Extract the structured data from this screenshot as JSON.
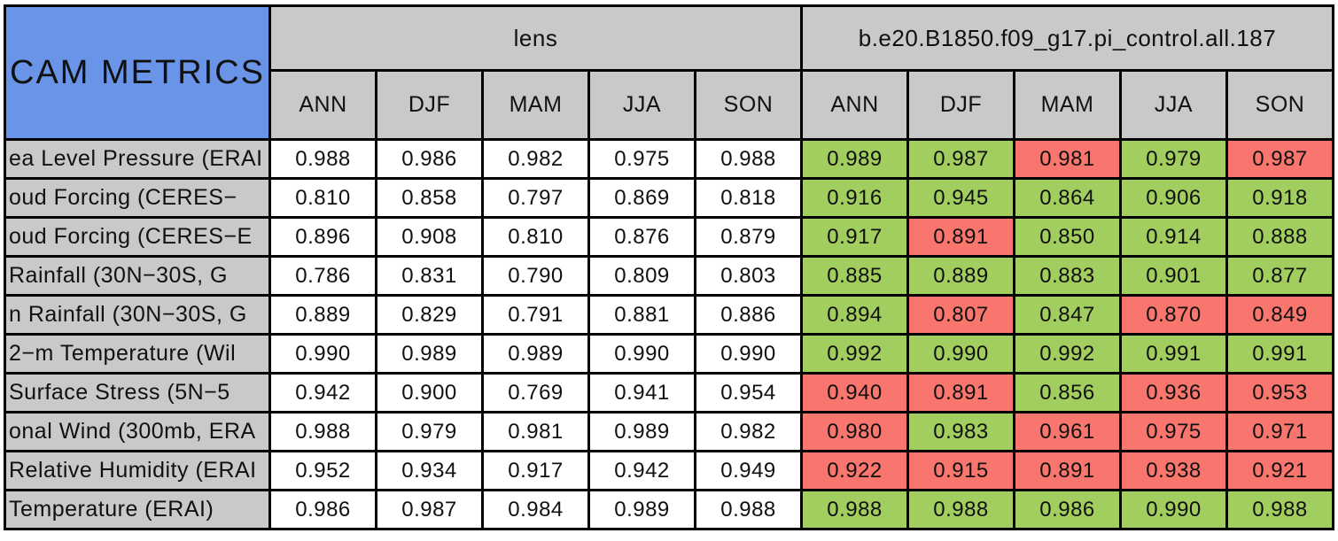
{
  "chart_data": {
    "type": "table",
    "title": "CAM METRICS",
    "column_groups": [
      {
        "label": "lens"
      },
      {
        "label": "b.e20.B1850.f09_g17.pi_control.all.187"
      }
    ],
    "seasons": [
      "ANN",
      "DJF",
      "MAM",
      "JJA",
      "SON"
    ],
    "rows": [
      {
        "label": "ea Level Pressure (ERAI",
        "lens": [
          "0.988",
          "0.986",
          "0.982",
          "0.975",
          "0.988"
        ],
        "control": [
          {
            "v": "0.989",
            "c": "better"
          },
          {
            "v": "0.987",
            "c": "better"
          },
          {
            "v": "0.981",
            "c": "worse"
          },
          {
            "v": "0.979",
            "c": "better"
          },
          {
            "v": "0.987",
            "c": "worse"
          }
        ]
      },
      {
        "label": "oud Forcing (CERES−",
        "lens": [
          "0.810",
          "0.858",
          "0.797",
          "0.869",
          "0.818"
        ],
        "control": [
          {
            "v": "0.916",
            "c": "better"
          },
          {
            "v": "0.945",
            "c": "better"
          },
          {
            "v": "0.864",
            "c": "better"
          },
          {
            "v": "0.906",
            "c": "better"
          },
          {
            "v": "0.918",
            "c": "better"
          }
        ]
      },
      {
        "label": "oud Forcing (CERES−E",
        "lens": [
          "0.896",
          "0.908",
          "0.810",
          "0.876",
          "0.879"
        ],
        "control": [
          {
            "v": "0.917",
            "c": "better"
          },
          {
            "v": "0.891",
            "c": "worse"
          },
          {
            "v": "0.850",
            "c": "better"
          },
          {
            "v": "0.914",
            "c": "better"
          },
          {
            "v": "0.888",
            "c": "better"
          }
        ]
      },
      {
        "label": " Rainfall (30N−30S, G",
        "lens": [
          "0.786",
          "0.831",
          "0.790",
          "0.809",
          "0.803"
        ],
        "control": [
          {
            "v": "0.885",
            "c": "better"
          },
          {
            "v": "0.889",
            "c": "better"
          },
          {
            "v": "0.883",
            "c": "better"
          },
          {
            "v": "0.901",
            "c": "better"
          },
          {
            "v": "0.877",
            "c": "better"
          }
        ]
      },
      {
        "label": "n Rainfall (30N−30S, G",
        "lens": [
          "0.889",
          "0.829",
          "0.791",
          "0.881",
          "0.886"
        ],
        "control": [
          {
            "v": "0.894",
            "c": "better"
          },
          {
            "v": "0.807",
            "c": "worse"
          },
          {
            "v": "0.847",
            "c": "better"
          },
          {
            "v": "0.870",
            "c": "worse"
          },
          {
            "v": "0.849",
            "c": "worse"
          }
        ]
      },
      {
        "label": "2−m Temperature (Wil",
        "lens": [
          "0.990",
          "0.989",
          "0.989",
          "0.990",
          "0.990"
        ],
        "control": [
          {
            "v": "0.992",
            "c": "better"
          },
          {
            "v": "0.990",
            "c": "better"
          },
          {
            "v": "0.992",
            "c": "better"
          },
          {
            "v": "0.991",
            "c": "better"
          },
          {
            "v": "0.991",
            "c": "better"
          }
        ]
      },
      {
        "label": " Surface Stress (5N−5",
        "lens": [
          "0.942",
          "0.900",
          "0.769",
          "0.941",
          "0.954"
        ],
        "control": [
          {
            "v": "0.940",
            "c": "worse"
          },
          {
            "v": "0.891",
            "c": "worse"
          },
          {
            "v": "0.856",
            "c": "better"
          },
          {
            "v": "0.936",
            "c": "worse"
          },
          {
            "v": "0.953",
            "c": "worse"
          }
        ]
      },
      {
        "label": "onal Wind (300mb, ERA",
        "lens": [
          "0.988",
          "0.979",
          "0.981",
          "0.989",
          "0.982"
        ],
        "control": [
          {
            "v": "0.980",
            "c": "worse"
          },
          {
            "v": "0.983",
            "c": "better"
          },
          {
            "v": "0.961",
            "c": "worse"
          },
          {
            "v": "0.975",
            "c": "worse"
          },
          {
            "v": "0.971",
            "c": "worse"
          }
        ]
      },
      {
        "label": "Relative Humidity (ERAI",
        "lens": [
          "0.952",
          "0.934",
          "0.917",
          "0.942",
          "0.949"
        ],
        "control": [
          {
            "v": "0.922",
            "c": "worse"
          },
          {
            "v": "0.915",
            "c": "worse"
          },
          {
            "v": "0.891",
            "c": "worse"
          },
          {
            "v": "0.938",
            "c": "worse"
          },
          {
            "v": "0.921",
            "c": "worse"
          }
        ]
      },
      {
        "label": "Temperature (ERAI)",
        "lens": [
          "0.986",
          "0.987",
          "0.984",
          "0.989",
          "0.988"
        ],
        "control": [
          {
            "v": "0.988",
            "c": "better"
          },
          {
            "v": "0.988",
            "c": "better"
          },
          {
            "v": "0.986",
            "c": "better"
          },
          {
            "v": "0.990",
            "c": "better"
          },
          {
            "v": "0.988",
            "c": "better"
          }
        ]
      }
    ]
  },
  "colors": {
    "title_bg": "#6A94E8",
    "header_bg": "#C9C9C9",
    "lens_cell_bg": "#FFFFFF",
    "better": "#A2CE60",
    "worse": "#F8766D",
    "border": "#000000"
  }
}
